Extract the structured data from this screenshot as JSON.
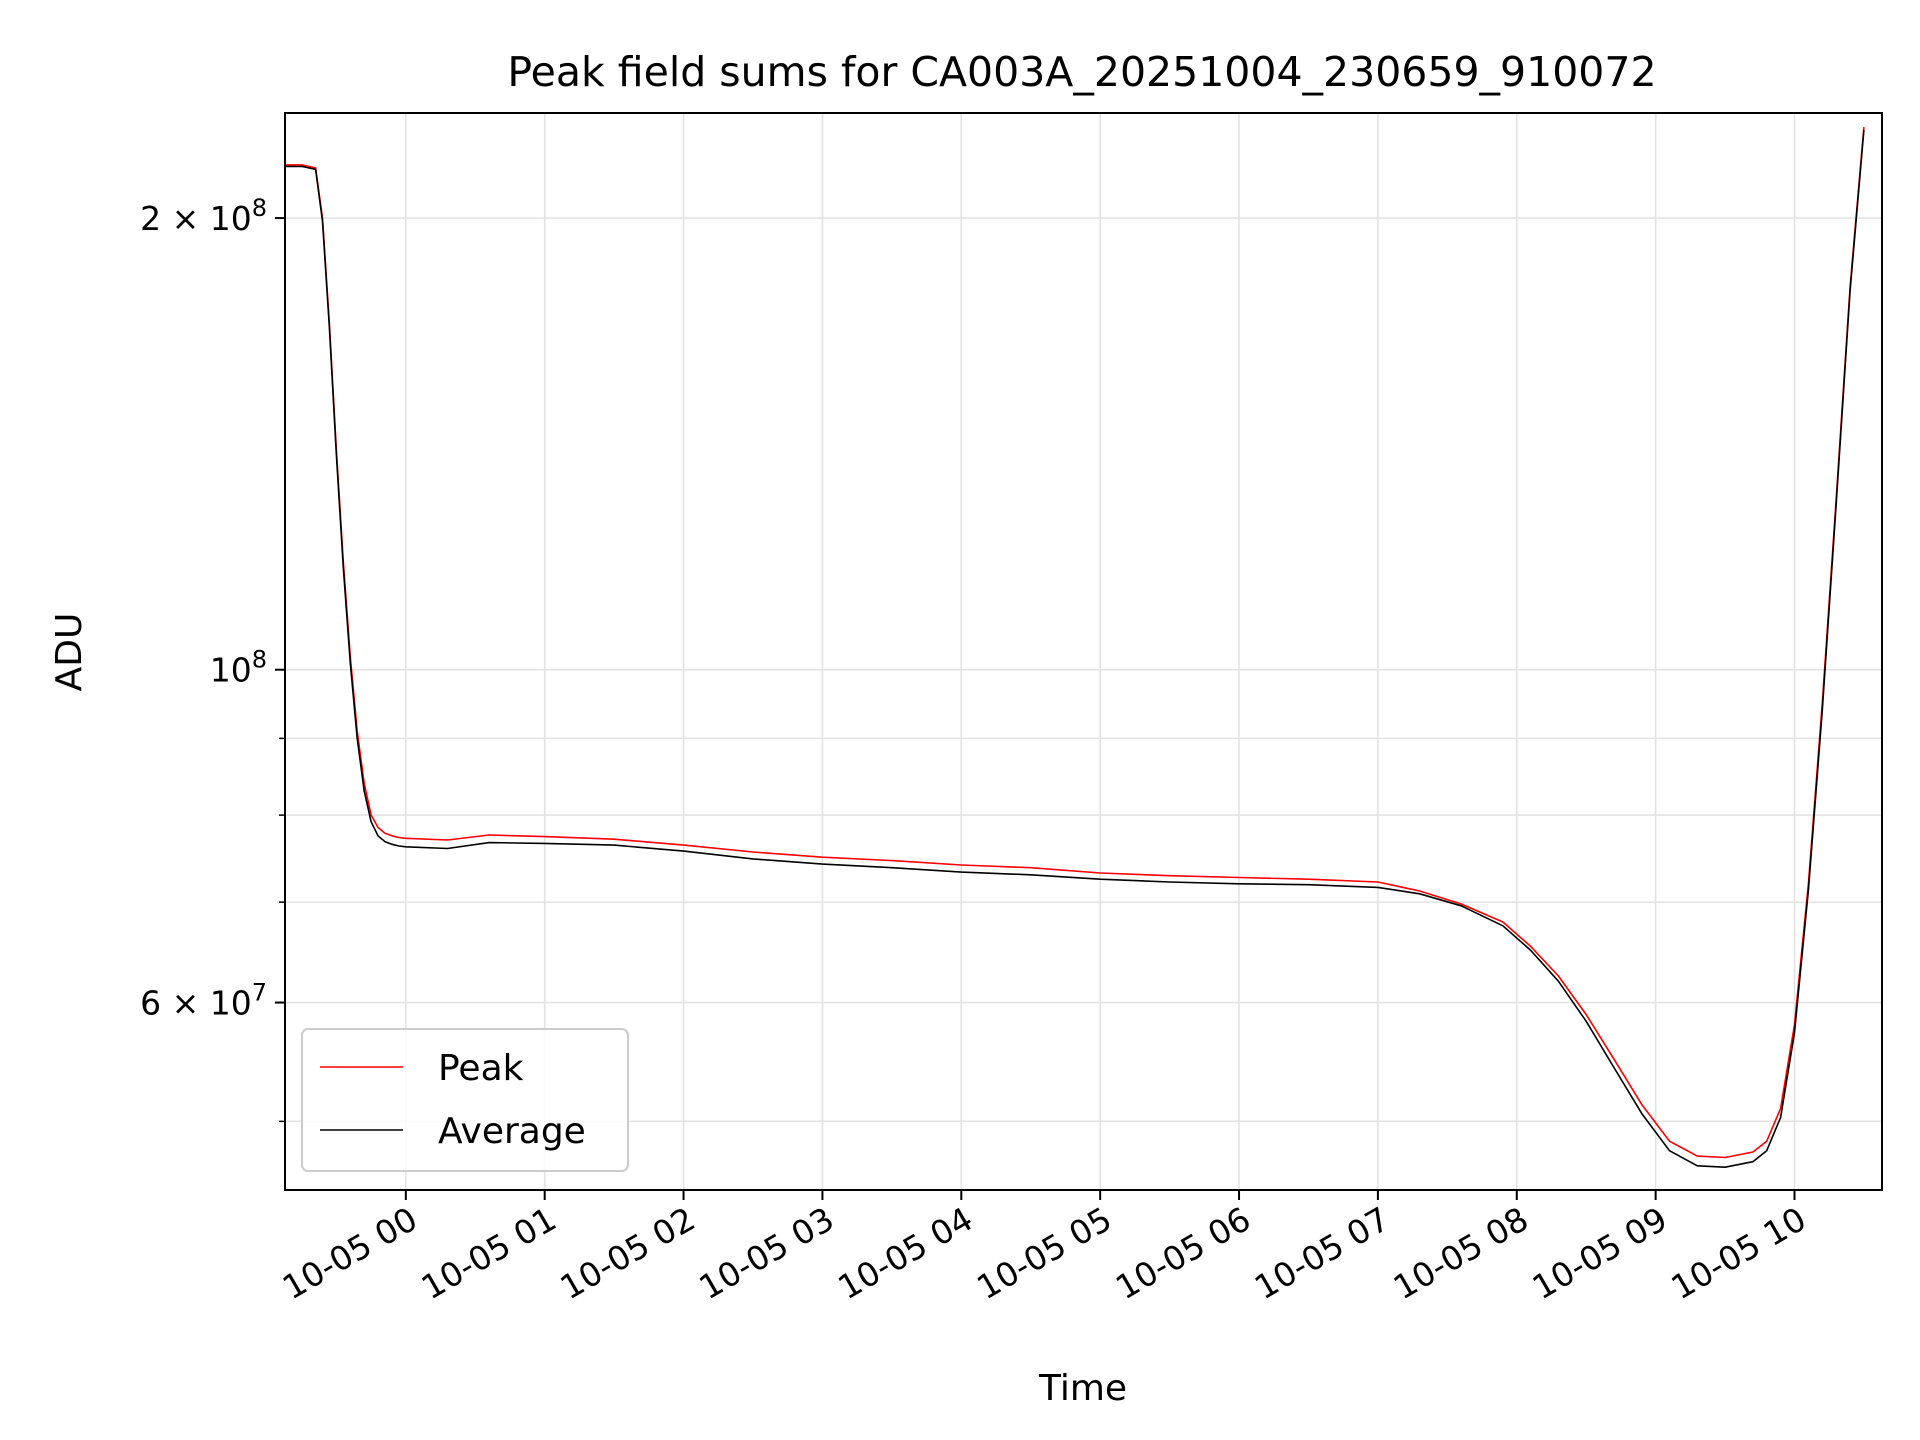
{
  "chart_data": {
    "type": "line",
    "title": "Peak field sums for CA003A_20251004_230659_910072",
    "xlabel": "Time",
    "ylabel": "ADU",
    "yscale": "log",
    "ylim": [
      45000000,
      235000000
    ],
    "xlim_hours": [
      -0.87,
      10.63
    ],
    "grid": true,
    "legend_position": "lower-left",
    "x_ticks": [
      {
        "value": 0,
        "label": "10-05 00"
      },
      {
        "value": 1,
        "label": "10-05 01"
      },
      {
        "value": 2,
        "label": "10-05 02"
      },
      {
        "value": 3,
        "label": "10-05 03"
      },
      {
        "value": 4,
        "label": "10-05 04"
      },
      {
        "value": 5,
        "label": "10-05 05"
      },
      {
        "value": 6,
        "label": "10-05 06"
      },
      {
        "value": 7,
        "label": "10-05 07"
      },
      {
        "value": 8,
        "label": "10-05 08"
      },
      {
        "value": 9,
        "label": "10-05 09"
      },
      {
        "value": 10,
        "label": "10-05 10"
      }
    ],
    "y_ticks_major": [
      {
        "value": 200000000,
        "mantissa": "2",
        "exponent": "8"
      },
      {
        "value": 100000000,
        "mantissa": "",
        "exponent": "8"
      },
      {
        "value": 60000000,
        "mantissa": "6",
        "exponent": "7"
      }
    ],
    "y_ticks_minor": [
      50000000,
      70000000,
      80000000,
      90000000
    ],
    "series": [
      {
        "name": "Peak",
        "color": "#ff0000",
        "x": [
          -0.87,
          -0.75,
          -0.65,
          -0.6,
          -0.55,
          -0.5,
          -0.45,
          -0.4,
          -0.35,
          -0.3,
          -0.25,
          -0.2,
          -0.15,
          -0.1,
          -0.05,
          0.0,
          0.3,
          0.6,
          1.0,
          1.5,
          2.0,
          2.5,
          3.0,
          3.5,
          4.0,
          4.5,
          5.0,
          5.5,
          6.0,
          6.5,
          7.0,
          7.3,
          7.6,
          7.9,
          8.1,
          8.3,
          8.5,
          8.7,
          8.9,
          9.1,
          9.3,
          9.5,
          9.7,
          9.8,
          9.9,
          10.0,
          10.1,
          10.2,
          10.3,
          10.4,
          10.5
        ],
        "values": [
          217000000,
          217000000,
          216000000,
          200000000,
          170000000,
          140000000,
          118000000,
          102000000,
          91000000,
          84000000,
          80000000,
          78500000,
          77800000,
          77500000,
          77300000,
          77200000,
          77000000,
          77600000,
          77400000,
          77100000,
          76400000,
          75600000,
          75000000,
          74600000,
          74100000,
          73800000,
          73200000,
          72900000,
          72700000,
          72500000,
          72200000,
          71200000,
          69800000,
          67900000,
          65400000,
          62500000,
          58900000,
          55000000,
          51300000,
          48500000,
          47400000,
          47300000,
          47700000,
          48500000,
          51000000,
          58000000,
          72000000,
          95000000,
          130000000,
          180000000,
          230000000
        ]
      },
      {
        "name": "Average",
        "color": "#000000",
        "x": [
          -0.87,
          -0.75,
          -0.65,
          -0.6,
          -0.55,
          -0.5,
          -0.45,
          -0.4,
          -0.35,
          -0.3,
          -0.25,
          -0.2,
          -0.15,
          -0.1,
          -0.05,
          0.0,
          0.3,
          0.6,
          1.0,
          1.5,
          2.0,
          2.5,
          3.0,
          3.5,
          4.0,
          4.5,
          5.0,
          5.5,
          6.0,
          6.5,
          7.0,
          7.3,
          7.6,
          7.9,
          8.1,
          8.3,
          8.5,
          8.7,
          8.9,
          9.1,
          9.3,
          9.5,
          9.7,
          9.8,
          9.9,
          10.0,
          10.1,
          10.2,
          10.3,
          10.4,
          10.5
        ],
        "values": [
          216500000,
          216500000,
          215500000,
          199000000,
          169000000,
          139000000,
          117000000,
          101000000,
          90000000,
          83000000,
          79200000,
          77500000,
          76800000,
          76500000,
          76300000,
          76200000,
          76000000,
          76700000,
          76600000,
          76400000,
          75700000,
          74800000,
          74200000,
          73800000,
          73300000,
          73000000,
          72500000,
          72200000,
          72000000,
          71900000,
          71600000,
          70900000,
          69600000,
          67500000,
          65000000,
          62000000,
          58300000,
          54300000,
          50600000,
          47800000,
          46700000,
          46600000,
          47000000,
          47800000,
          50300000,
          57300000,
          71300000,
          94000000,
          129000000,
          179000000,
          229000000
        ]
      }
    ]
  }
}
